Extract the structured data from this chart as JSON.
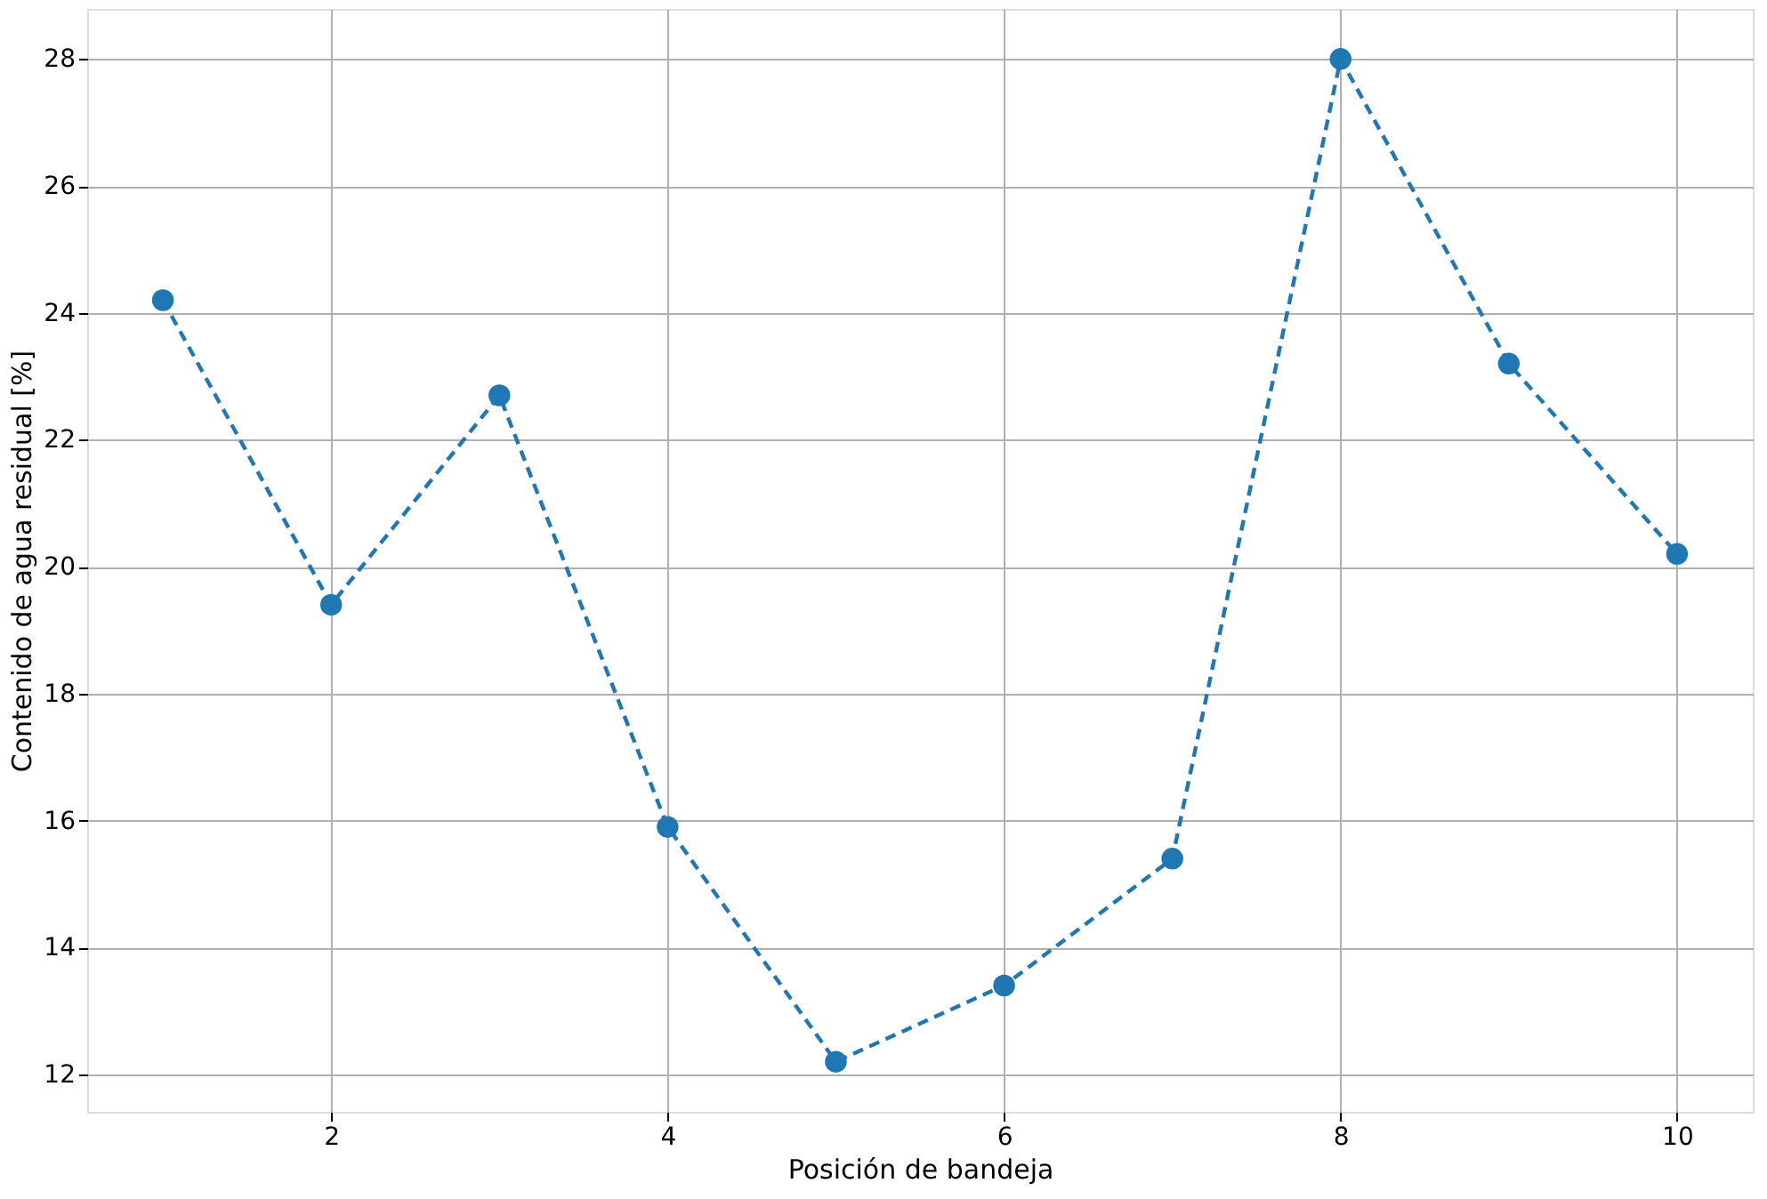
{
  "chart_data": {
    "type": "line",
    "xlabel": "Posición de bandeja",
    "ylabel": "Contenido de agua residual [%]",
    "x": [
      1,
      2,
      3,
      4,
      5,
      6,
      7,
      8,
      9,
      10
    ],
    "series": [
      {
        "color": "#1f77b4",
        "values": [
          24.2,
          19.4,
          22.7,
          15.9,
          12.2,
          13.4,
          15.4,
          28.0,
          23.2,
          20.2
        ]
      }
    ],
    "xlim": [
      0.55,
      10.45
    ],
    "xticks": [
      2,
      4,
      6,
      8,
      10
    ],
    "ylim": [
      11.41,
      28.79
    ],
    "yticks": [
      12,
      14,
      16,
      18,
      20,
      22,
      24,
      26,
      28
    ],
    "grid": true,
    "marker": "circle",
    "line_style": "dashed"
  }
}
